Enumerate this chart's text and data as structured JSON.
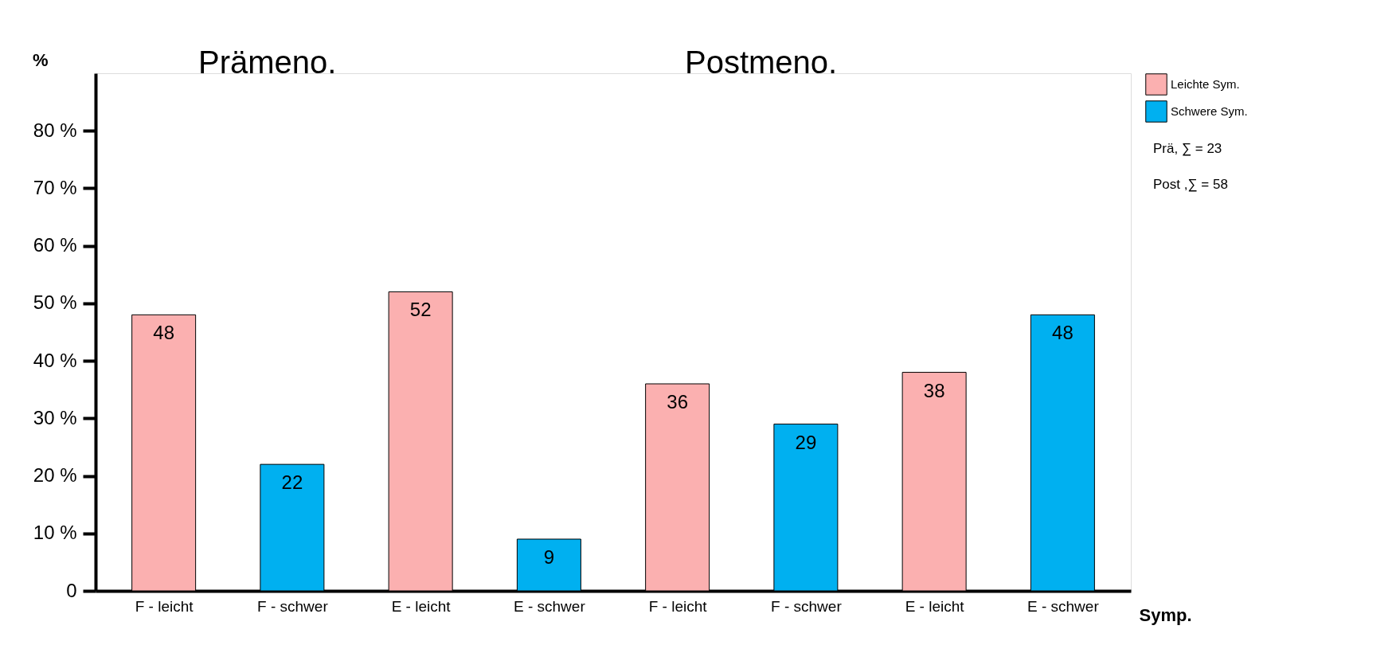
{
  "chart_data": {
    "type": "bar",
    "xlabel": "Symp.",
    "ylabel": "%",
    "categories": [
      "F - leicht",
      "F - schwer",
      "E - leicht",
      "E - schwer",
      "F - leicht",
      "F - schwer",
      "E - leicht",
      "E - schwer"
    ],
    "series": [
      {
        "name": "Leichte Sym.",
        "color": "#fbb0b0",
        "values": [
          48,
          null,
          52,
          null,
          36,
          null,
          38,
          null
        ]
      },
      {
        "name": "Schwere Sym.",
        "color": "#00b0f0",
        "values": [
          null,
          22,
          null,
          9,
          null,
          29,
          null,
          48
        ]
      }
    ],
    "ylim": [
      0,
      90
    ],
    "yticks": [
      0,
      {
        "value": 10,
        "label": "10 %"
      },
      {
        "value": 20,
        "label": "20 %"
      },
      {
        "value": 30,
        "label": "30 %"
      },
      {
        "value": 40,
        "label": "40 %"
      },
      {
        "value": 50,
        "label": "50 %"
      },
      {
        "value": 60,
        "label": "60 %"
      },
      {
        "value": 70,
        "label": "70 %"
      },
      {
        "value": 80,
        "label": "80 %"
      }
    ],
    "data_labels": true,
    "grid": false,
    "legend": "top right",
    "annotations": [
      "Prämeno.",
      "Postmeno.",
      "Prä, ∑ = 23",
      "Post ,∑ = 58"
    ]
  }
}
